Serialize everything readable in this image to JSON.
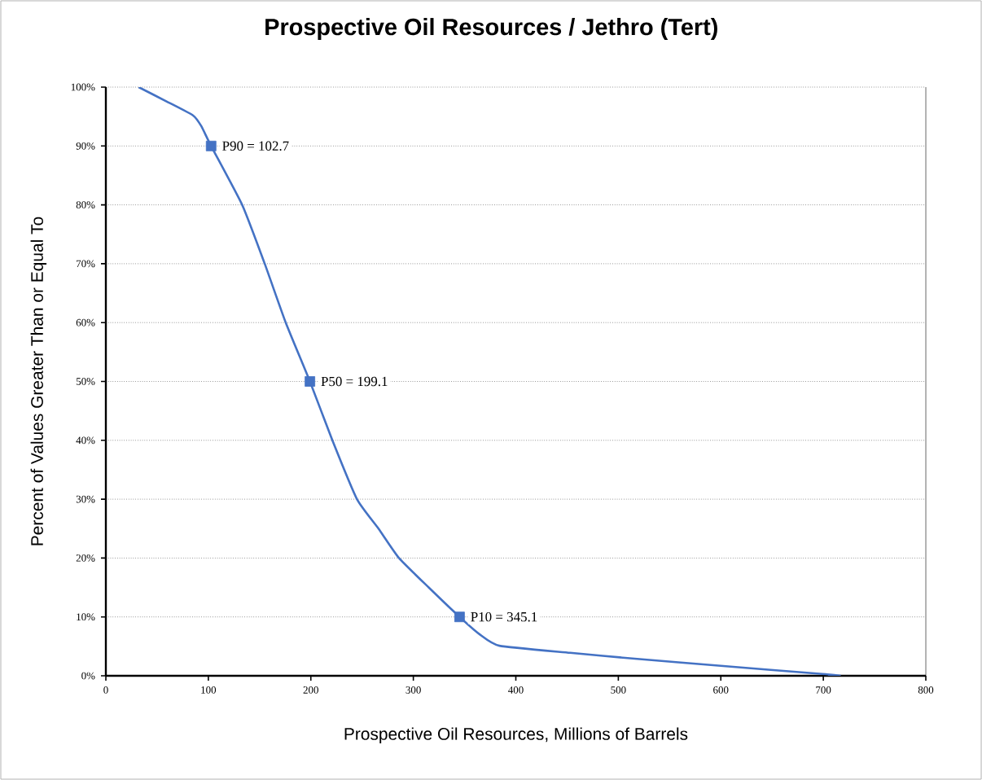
{
  "chart_data": {
    "type": "line",
    "title": "Prospective Oil Resources / Jethro (Tert)",
    "xlabel": "Prospective Oil Resources, Millions of Barrels",
    "ylabel": "Percent of Values Greater Than or Equal To",
    "xlim": [
      0,
      800
    ],
    "xticks": [
      0,
      100,
      200,
      300,
      400,
      500,
      600,
      700,
      800
    ],
    "ylim": [
      0,
      100
    ],
    "yticks": [
      {
        "value": 0,
        "label": "0%"
      },
      {
        "value": 10,
        "label": "10%"
      },
      {
        "value": 20,
        "label": "20%"
      },
      {
        "value": 30,
        "label": "30%"
      },
      {
        "value": 40,
        "label": "40%"
      },
      {
        "value": 50,
        "label": "50%"
      },
      {
        "value": 60,
        "label": "60%"
      },
      {
        "value": 70,
        "label": "70%"
      },
      {
        "value": 80,
        "label": "80%"
      },
      {
        "value": 90,
        "label": "90%"
      },
      {
        "value": 100,
        "label": "100%"
      }
    ],
    "grid": "y",
    "series": [
      {
        "marker": "none",
        "color": "#4472c4",
        "x": [
          32,
          60,
          85,
          93,
          102.7,
          133,
          155,
          175.5,
          199.1,
          221,
          245,
          266,
          286,
          315,
          345.1,
          365,
          384,
          453,
          516,
          600,
          699,
          717
        ],
        "values": [
          100,
          97.5,
          95.2,
          93.4,
          90,
          80,
          70,
          60,
          50,
          40,
          30,
          25,
          20,
          15,
          10,
          7,
          5.1,
          3.9,
          2.9,
          1.7,
          0.3,
          0
        ]
      },
      {
        "type": "scatter",
        "marker": "square",
        "color": "#4472c4",
        "x": [
          102.7,
          199.1,
          345.1
        ],
        "values": [
          90,
          50,
          10
        ]
      }
    ],
    "annotations": [
      {
        "text": "P90 = 102.7",
        "x": 102.7,
        "y": 90
      },
      {
        "text": "P50 = 199.1",
        "x": 199.1,
        "y": 50
      },
      {
        "text": "P10 = 345.1",
        "x": 345.1,
        "y": 10
      }
    ]
  }
}
